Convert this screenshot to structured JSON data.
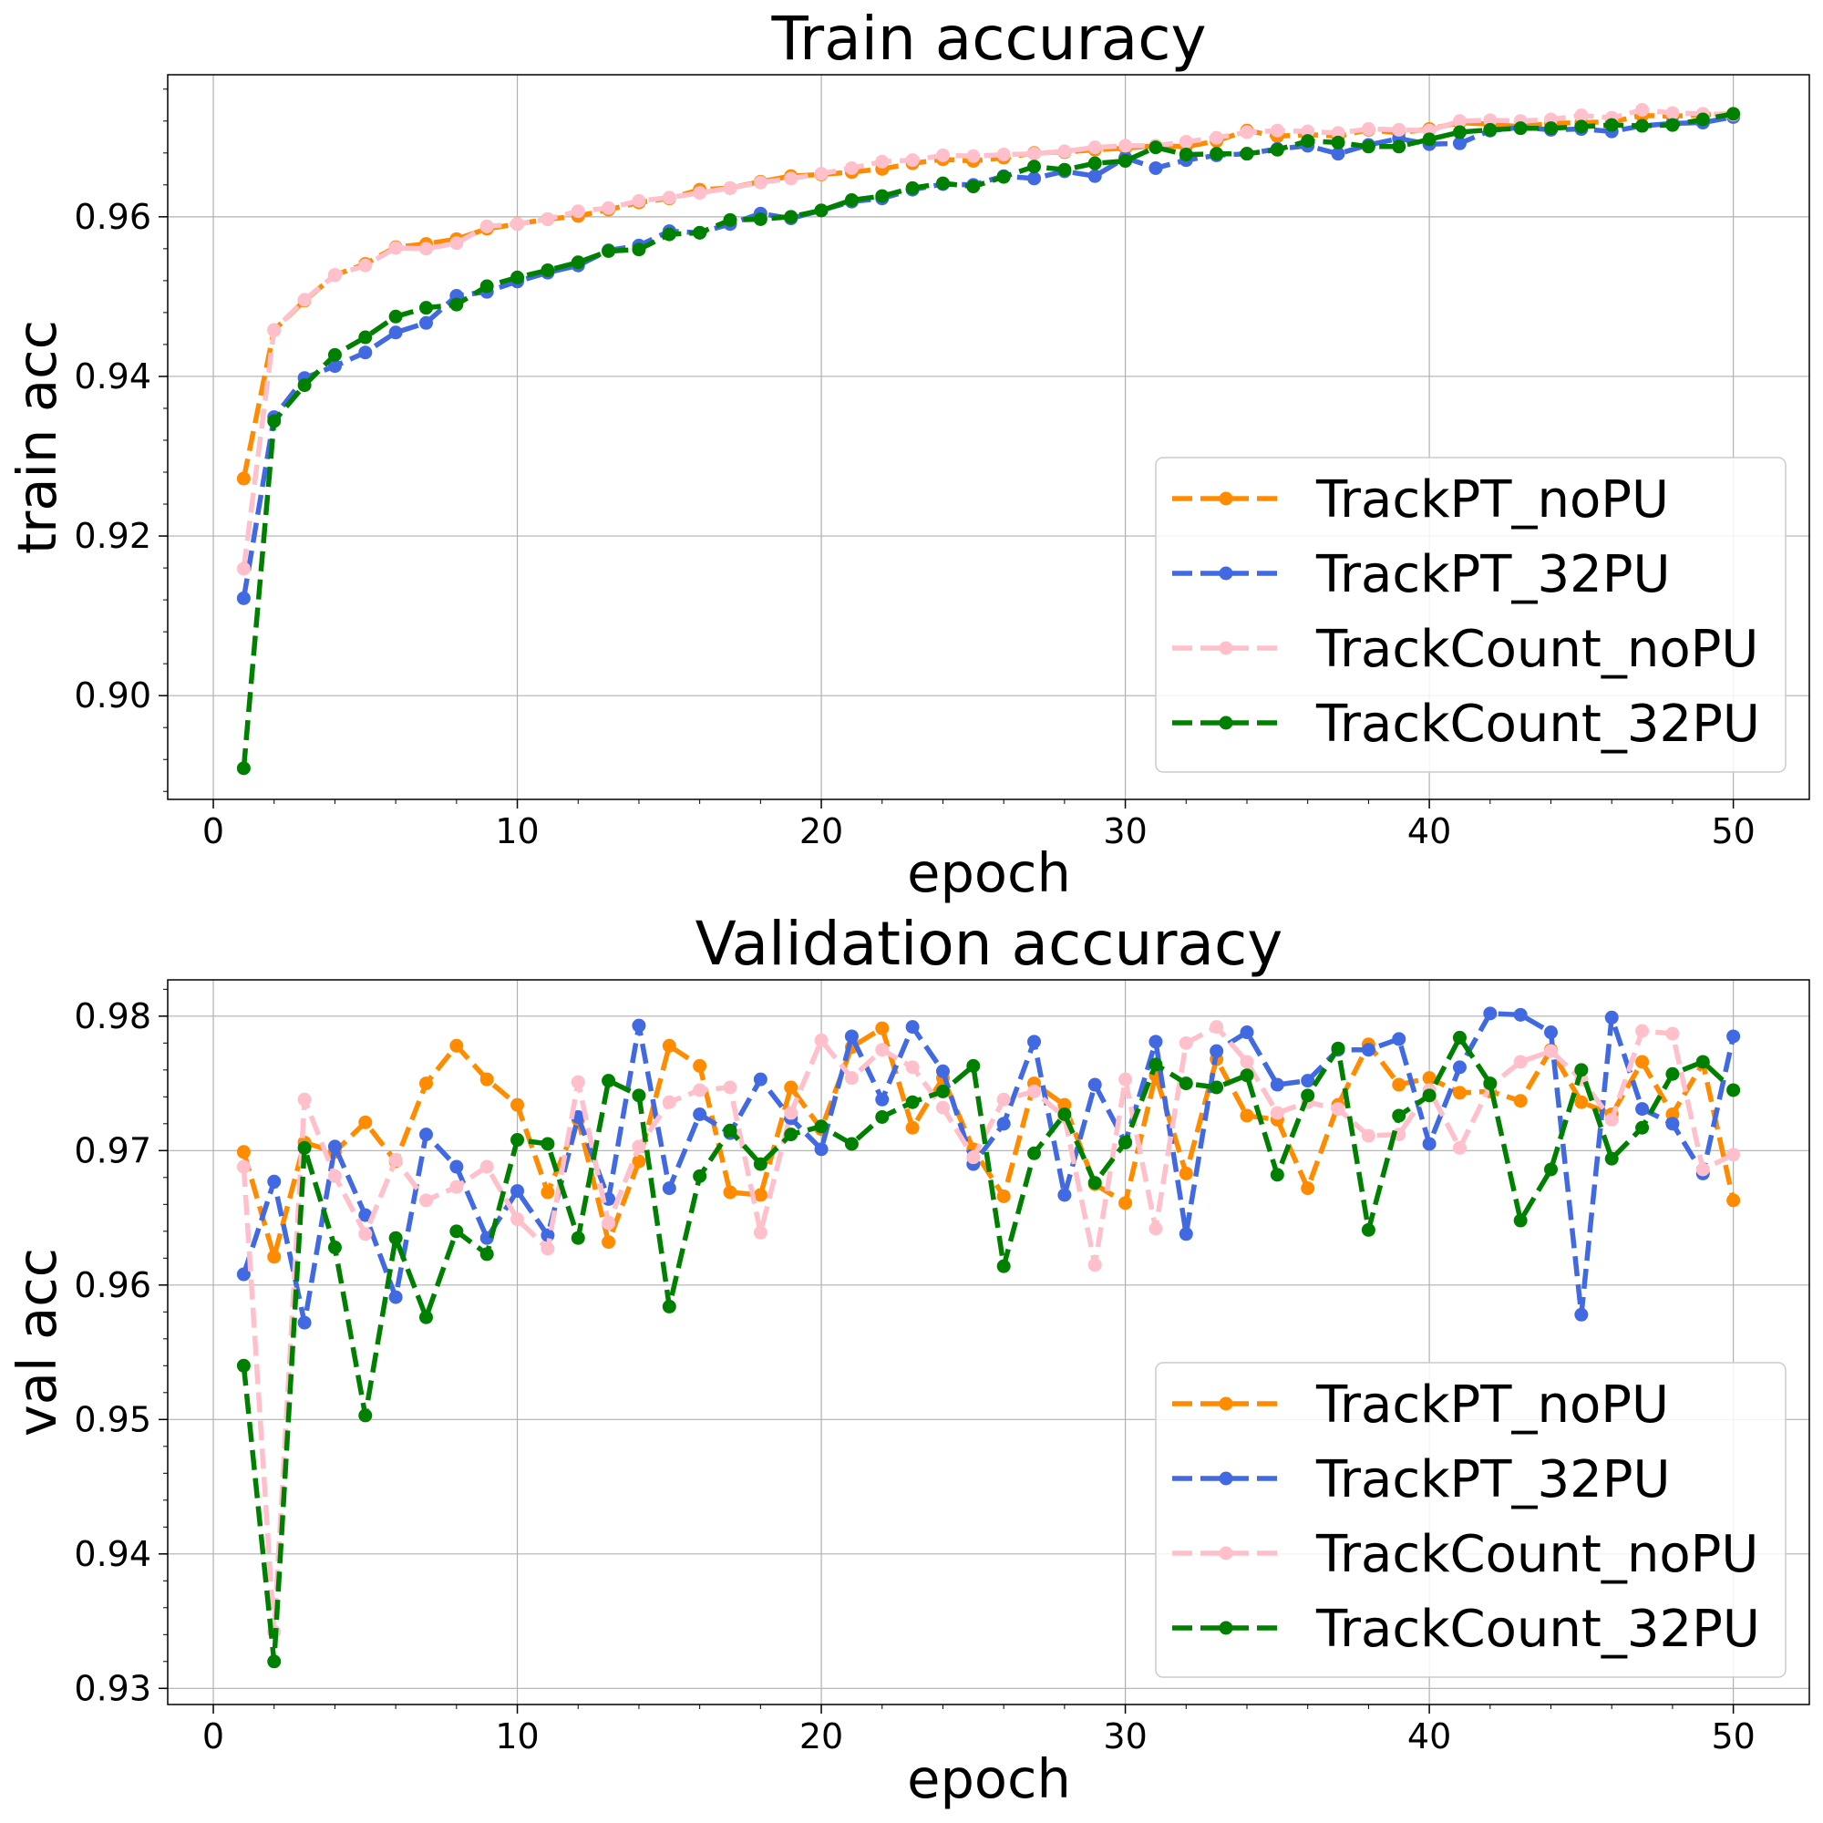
{
  "legend_labels": [
    "TrackPT_noPU",
    "TrackPT_32PU",
    "TrackCount_noPU",
    "TrackCount_32PU"
  ],
  "colors": {
    "TrackPT_noPU": "#ff8c00",
    "TrackPT_32PU": "#4169e1",
    "TrackCount_noPU": "#ffc0cb",
    "TrackCount_32PU": "#008000"
  },
  "chart_data": [
    {
      "type": "line",
      "title": "Train accuracy",
      "xlabel": "epoch",
      "ylabel": "train acc",
      "xlim": [
        -1.5,
        52.5
      ],
      "ylim": [
        0.887,
        0.9778
      ],
      "xticks": [
        0,
        10,
        20,
        30,
        40,
        50
      ],
      "yticks": [
        0.9,
        0.92,
        0.94,
        0.96
      ],
      "ytick_labels": [
        "0.90",
        "0.92",
        "0.94",
        "0.96"
      ],
      "grid": true,
      "legend": "lower-right",
      "x": [
        1,
        2,
        3,
        4,
        5,
        6,
        7,
        8,
        9,
        10,
        11,
        12,
        13,
        14,
        15,
        16,
        17,
        18,
        19,
        20,
        21,
        22,
        23,
        24,
        25,
        26,
        27,
        28,
        29,
        30,
        31,
        32,
        33,
        34,
        35,
        36,
        37,
        38,
        39,
        40,
        41,
        42,
        43,
        44,
        45,
        46,
        47,
        48,
        49,
        50
      ],
      "series": [
        {
          "name": "TrackPT_noPU",
          "values": [
            0.9272,
            0.9458,
            0.9495,
            0.9527,
            0.9541,
            0.9562,
            0.9566,
            0.9572,
            0.9585,
            0.9591,
            0.9597,
            0.9601,
            0.9609,
            0.9618,
            0.9623,
            0.9634,
            0.9636,
            0.9644,
            0.9651,
            0.9653,
            0.9656,
            0.966,
            0.9667,
            0.9672,
            0.967,
            0.9674,
            0.968,
            0.9681,
            0.9684,
            0.9686,
            0.9689,
            0.9688,
            0.9695,
            0.9708,
            0.9701,
            0.9703,
            0.9701,
            0.9709,
            0.9705,
            0.971,
            0.9718,
            0.9716,
            0.9713,
            0.9717,
            0.9718,
            0.9719,
            0.9727,
            0.9726,
            0.9728,
            0.9729
          ]
        },
        {
          "name": "TrackPT_32PU",
          "values": [
            0.9122,
            0.9349,
            0.9398,
            0.9413,
            0.943,
            0.9455,
            0.9467,
            0.9501,
            0.9506,
            0.9519,
            0.953,
            0.9539,
            0.9558,
            0.9564,
            0.9582,
            0.958,
            0.9591,
            0.9604,
            0.9598,
            0.9608,
            0.9619,
            0.9623,
            0.9634,
            0.9641,
            0.964,
            0.9651,
            0.9648,
            0.9657,
            0.9651,
            0.9674,
            0.9661,
            0.9671,
            0.9677,
            0.9679,
            0.9685,
            0.9689,
            0.9679,
            0.969,
            0.9698,
            0.9691,
            0.9692,
            0.9708,
            0.9712,
            0.9709,
            0.971,
            0.9707,
            0.9714,
            0.9717,
            0.9718,
            0.9725
          ]
        },
        {
          "name": "TrackCount_noPU",
          "values": [
            0.9159,
            0.9458,
            0.9496,
            0.9527,
            0.9539,
            0.9561,
            0.956,
            0.9567,
            0.9588,
            0.9591,
            0.9597,
            0.9607,
            0.9611,
            0.962,
            0.9624,
            0.963,
            0.9636,
            0.9643,
            0.9648,
            0.9654,
            0.9661,
            0.9669,
            0.9671,
            0.9677,
            0.9676,
            0.9678,
            0.9679,
            0.9682,
            0.9687,
            0.9689,
            0.9689,
            0.9694,
            0.9699,
            0.9706,
            0.9708,
            0.9707,
            0.9705,
            0.971,
            0.9709,
            0.9708,
            0.972,
            0.9721,
            0.972,
            0.9722,
            0.9727,
            0.9724,
            0.9734,
            0.973,
            0.9729,
            0.9728
          ]
        },
        {
          "name": "TrackCount_32PU",
          "values": [
            0.8909,
            0.9344,
            0.9389,
            0.9427,
            0.9449,
            0.9475,
            0.9486,
            0.949,
            0.9513,
            0.9524,
            0.9533,
            0.9543,
            0.9557,
            0.9559,
            0.9578,
            0.958,
            0.9596,
            0.9597,
            0.96,
            0.9608,
            0.9621,
            0.9626,
            0.9636,
            0.9642,
            0.9638,
            0.965,
            0.9663,
            0.9659,
            0.9667,
            0.967,
            0.9687,
            0.9678,
            0.9679,
            0.9679,
            0.9684,
            0.9695,
            0.9693,
            0.9688,
            0.9688,
            0.9697,
            0.9706,
            0.9709,
            0.9711,
            0.9711,
            0.9713,
            0.9715,
            0.9714,
            0.9715,
            0.9722,
            0.9729
          ]
        }
      ]
    },
    {
      "type": "line",
      "title": "Validation accuracy",
      "xlabel": "epoch",
      "ylabel": "val acc",
      "xlim": [
        -1.5,
        52.5
      ],
      "ylim": [
        0.9288,
        0.9827
      ],
      "xticks": [
        0,
        10,
        20,
        30,
        40,
        50
      ],
      "yticks": [
        0.93,
        0.94,
        0.95,
        0.96,
        0.97,
        0.98
      ],
      "ytick_labels": [
        "0.93",
        "0.94",
        "0.95",
        "0.96",
        "0.97",
        "0.98"
      ],
      "grid": true,
      "legend": "lower-right",
      "x": [
        1,
        2,
        3,
        4,
        5,
        6,
        7,
        8,
        9,
        10,
        11,
        12,
        13,
        14,
        15,
        16,
        17,
        18,
        19,
        20,
        21,
        22,
        23,
        24,
        25,
        26,
        27,
        28,
        29,
        30,
        31,
        32,
        33,
        34,
        35,
        36,
        37,
        38,
        39,
        40,
        41,
        42,
        43,
        44,
        45,
        46,
        47,
        48,
        49,
        50
      ],
      "series": [
        {
          "name": "TrackPT_noPU",
          "values": [
            0.9699,
            0.9621,
            0.9706,
            0.9699,
            0.9721,
            0.9692,
            0.975,
            0.9778,
            0.9753,
            0.9734,
            0.9669,
            0.9723,
            0.9632,
            0.9692,
            0.9778,
            0.9763,
            0.9669,
            0.9667,
            0.9747,
            0.9716,
            0.9777,
            0.9791,
            0.9717,
            0.9754,
            0.9701,
            0.9666,
            0.975,
            0.9734,
            0.9675,
            0.9661,
            0.9756,
            0.9683,
            0.9768,
            0.9726,
            0.9723,
            0.9672,
            0.9734,
            0.9779,
            0.9749,
            0.9754,
            0.9743,
            0.9744,
            0.9737,
            0.9775,
            0.9736,
            0.9727,
            0.9766,
            0.9727,
            0.9765,
            0.9663
          ]
        },
        {
          "name": "TrackPT_32PU",
          "values": [
            0.9608,
            0.9677,
            0.9572,
            0.9703,
            0.9652,
            0.9591,
            0.9712,
            0.9688,
            0.9635,
            0.967,
            0.9637,
            0.9725,
            0.9664,
            0.9793,
            0.9672,
            0.9727,
            0.9713,
            0.9753,
            0.9724,
            0.9701,
            0.9785,
            0.9738,
            0.9792,
            0.9759,
            0.969,
            0.972,
            0.9781,
            0.9667,
            0.9749,
            0.9706,
            0.9781,
            0.9638,
            0.9774,
            0.9788,
            0.9749,
            0.9752,
            0.9775,
            0.9775,
            0.9783,
            0.9705,
            0.9762,
            0.9802,
            0.9801,
            0.9788,
            0.9578,
            0.9799,
            0.9731,
            0.972,
            0.9683,
            0.9785
          ]
        },
        {
          "name": "TrackCount_noPU",
          "values": [
            0.9688,
            0.9342,
            0.9738,
            0.9681,
            0.9638,
            0.9693,
            0.9663,
            0.9673,
            0.9688,
            0.9649,
            0.9627,
            0.9751,
            0.9646,
            0.9703,
            0.9736,
            0.9745,
            0.9747,
            0.9639,
            0.9728,
            0.9782,
            0.9754,
            0.9775,
            0.9762,
            0.9732,
            0.9695,
            0.9738,
            0.9744,
            0.9725,
            0.9615,
            0.9753,
            0.9642,
            0.978,
            0.9792,
            0.9766,
            0.9728,
            0.9736,
            0.9731,
            0.9711,
            0.9712,
            0.9745,
            0.9702,
            0.9748,
            0.9766,
            0.9774,
            0.9753,
            0.9723,
            0.9789,
            0.9787,
            0.9686,
            0.9697
          ]
        },
        {
          "name": "TrackCount_32PU",
          "values": [
            0.954,
            0.932,
            0.9702,
            0.9628,
            0.9503,
            0.9635,
            0.9576,
            0.964,
            0.9623,
            0.9708,
            0.9705,
            0.9635,
            0.9752,
            0.9741,
            0.9584,
            0.9681,
            0.9715,
            0.969,
            0.9712,
            0.9718,
            0.9705,
            0.9725,
            0.9736,
            0.9744,
            0.9763,
            0.9614,
            0.9698,
            0.9727,
            0.9676,
            0.9706,
            0.9764,
            0.975,
            0.9747,
            0.9756,
            0.9682,
            0.9741,
            0.9776,
            0.9641,
            0.9726,
            0.9741,
            0.9784,
            0.975,
            0.9648,
            0.9686,
            0.976,
            0.9694,
            0.9717,
            0.9757,
            0.9766,
            0.9745
          ]
        }
      ]
    }
  ]
}
